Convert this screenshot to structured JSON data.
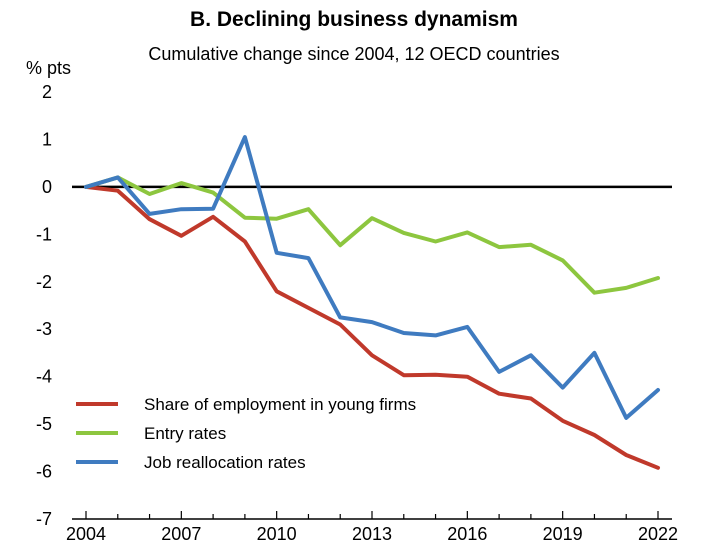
{
  "chart_data": {
    "type": "line",
    "title": "B. Declining business dynamism",
    "subtitle": "Cumulative change since 2004, 12 OECD countries",
    "ylabel": "% pts",
    "xlabel": "",
    "ylim": [
      -7,
      2
    ],
    "yticks": [
      2,
      1,
      0,
      -1,
      -2,
      -3,
      -4,
      -5,
      -6,
      -7
    ],
    "xlim": [
      2004,
      2022
    ],
    "xticks": [
      2004,
      2007,
      2010,
      2013,
      2016,
      2019,
      2022
    ],
    "x": [
      2004,
      2005,
      2006,
      2007,
      2008,
      2009,
      2010,
      2011,
      2012,
      2013,
      2014,
      2015,
      2016,
      2017,
      2018,
      2019,
      2020,
      2021,
      2022
    ],
    "legend_position": "bottom-left",
    "series": [
      {
        "name": "Share of employment in young firms",
        "color": "#c0392b",
        "values": [
          0,
          -0.08,
          -0.68,
          -1.03,
          -0.63,
          -1.15,
          -2.2,
          -2.55,
          -2.9,
          -3.55,
          -3.97,
          -3.96,
          -4.0,
          -4.36,
          -4.46,
          -4.93,
          -5.23,
          -5.65,
          -5.92
        ]
      },
      {
        "name": "Entry rates",
        "color": "#8dc63f",
        "values": [
          0,
          0.2,
          -0.15,
          0.08,
          -0.12,
          -0.65,
          -0.67,
          -0.47,
          -1.23,
          -0.66,
          -0.97,
          -1.15,
          -0.96,
          -1.27,
          -1.22,
          -1.55,
          -2.23,
          -2.13,
          -1.92
        ]
      },
      {
        "name": "Job reallocation rates",
        "color": "#3f7bc0",
        "values": [
          0,
          0.2,
          -0.57,
          -0.47,
          -0.46,
          1.05,
          -1.39,
          -1.5,
          -2.75,
          -2.85,
          -3.08,
          -3.13,
          -2.95,
          -3.9,
          -3.55,
          -4.23,
          -3.5,
          -4.87,
          -4.28
        ]
      }
    ]
  }
}
